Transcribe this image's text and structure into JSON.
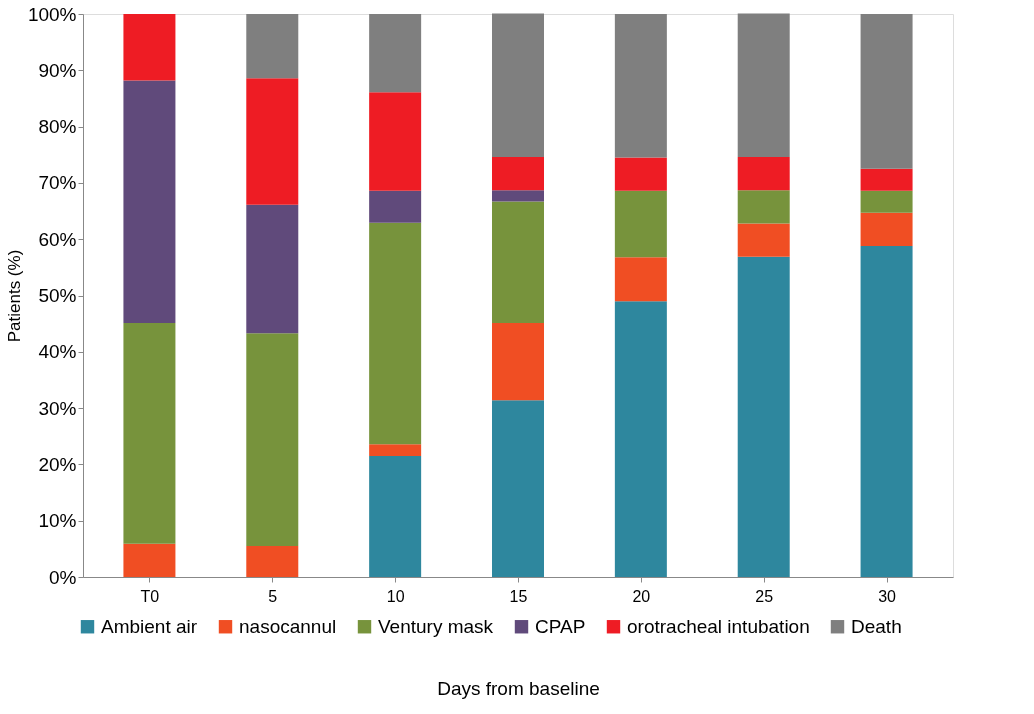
{
  "chart_data": {
    "type": "bar",
    "stacked": true,
    "xlabel": "Days from baseline",
    "ylabel": "Patients (%)",
    "categories": [
      "T0",
      "5",
      "10",
      "15",
      "20",
      "25",
      "30"
    ],
    "series": [
      {
        "name": "Ambient air",
        "color": "#2e879e",
        "values": [
          0,
          0,
          21.5,
          31.4,
          49.0,
          56.9,
          58.8
        ]
      },
      {
        "name": "nasocannul",
        "color": "#f04e23",
        "values": [
          5.9,
          5.5,
          2.1,
          13.7,
          7.8,
          5.9,
          5.9
        ]
      },
      {
        "name": "Ventury mask",
        "color": "#77933c",
        "values": [
          39.2,
          37.8,
          39.3,
          21.6,
          11.8,
          5.9,
          3.9
        ]
      },
      {
        "name": "CPAP",
        "color": "#604a7b",
        "values": [
          43.1,
          22.8,
          5.7,
          2.0,
          0,
          0,
          0
        ]
      },
      {
        "name": "orotracheal intubation",
        "color": "#ee1c24",
        "values": [
          11.8,
          22.5,
          17.5,
          5.9,
          5.9,
          5.9,
          3.9
        ]
      },
      {
        "name": "Death",
        "color": "#7f7f7f",
        "values": [
          0,
          11.4,
          13.9,
          25.5,
          25.5,
          25.5,
          27.5
        ]
      }
    ],
    "ylim": [
      0,
      100
    ],
    "yticks": [
      {
        "value": 0,
        "label": "0%"
      },
      {
        "value": 10,
        "label": "10%"
      },
      {
        "value": 20,
        "label": "20%"
      },
      {
        "value": 30,
        "label": "30%"
      },
      {
        "value": 40,
        "label": "40%"
      },
      {
        "value": 50,
        "label": "50%"
      },
      {
        "value": 60,
        "label": "60%"
      },
      {
        "value": 70,
        "label": "70%"
      },
      {
        "value": 80,
        "label": "80%"
      },
      {
        "value": 90,
        "label": "90%"
      },
      {
        "value": 100,
        "label": "100%"
      }
    ],
    "grid": false,
    "legend": "bottom"
  }
}
